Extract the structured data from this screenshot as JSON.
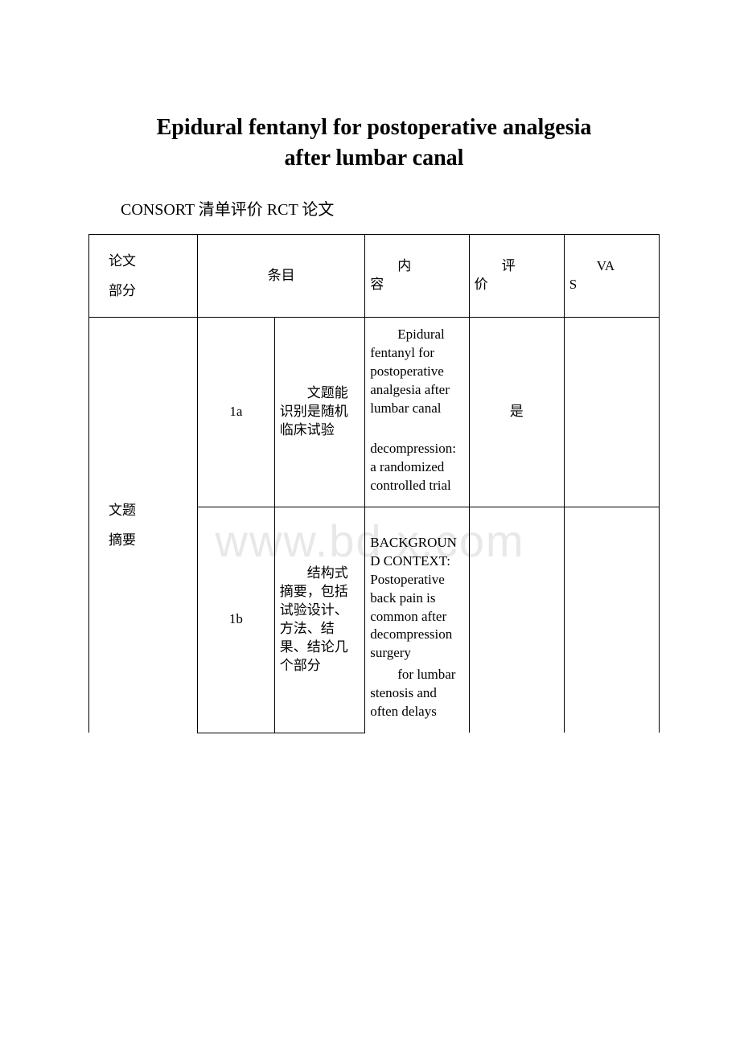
{
  "title_line1": "Epidural fentanyl for postoperative analgesia",
  "title_line2": "after lumbar canal",
  "subtitle": "CONSORT 清单评价 RCT 论文",
  "watermark": "www.bd   x.com",
  "header": {
    "section_l1": "论文",
    "section_l2": "部分",
    "item": "条目",
    "content_label": "内",
    "content_label2": "容",
    "eval_label": "评",
    "eval_label2": "价",
    "vas_label": "VA",
    "vas_label2": "S"
  },
  "row1": {
    "section_l1": "文题",
    "section_l2": "摘要",
    "item_no": "1a",
    "item_desc_p1": "文",
    "item_desc_rest": "题能识别是随机临床试验",
    "content_p1_first": "Epi",
    "content_p1_rest": "dural fentanyl for postoperative analgesia after lumbar canal",
    "content_p2_first": "dec",
    "content_p2_rest": "ompression: a randomized controlled trial",
    "eval": "是",
    "vas": ""
  },
  "row2": {
    "section": "",
    "item_no": "1b",
    "item_desc_p1": "结",
    "item_desc_rest": "构式摘要，包括试验设计、方法、结果、结论几个部分",
    "content_p1_first": "BA",
    "content_p1_rest": "CKGROUND CONTEXT: Postoperative back pain is common after decompression surgery",
    "content_p2_first": "for",
    "content_p2_rest": " lumbar stenosis and often delays",
    "eval": "",
    "vas": ""
  }
}
